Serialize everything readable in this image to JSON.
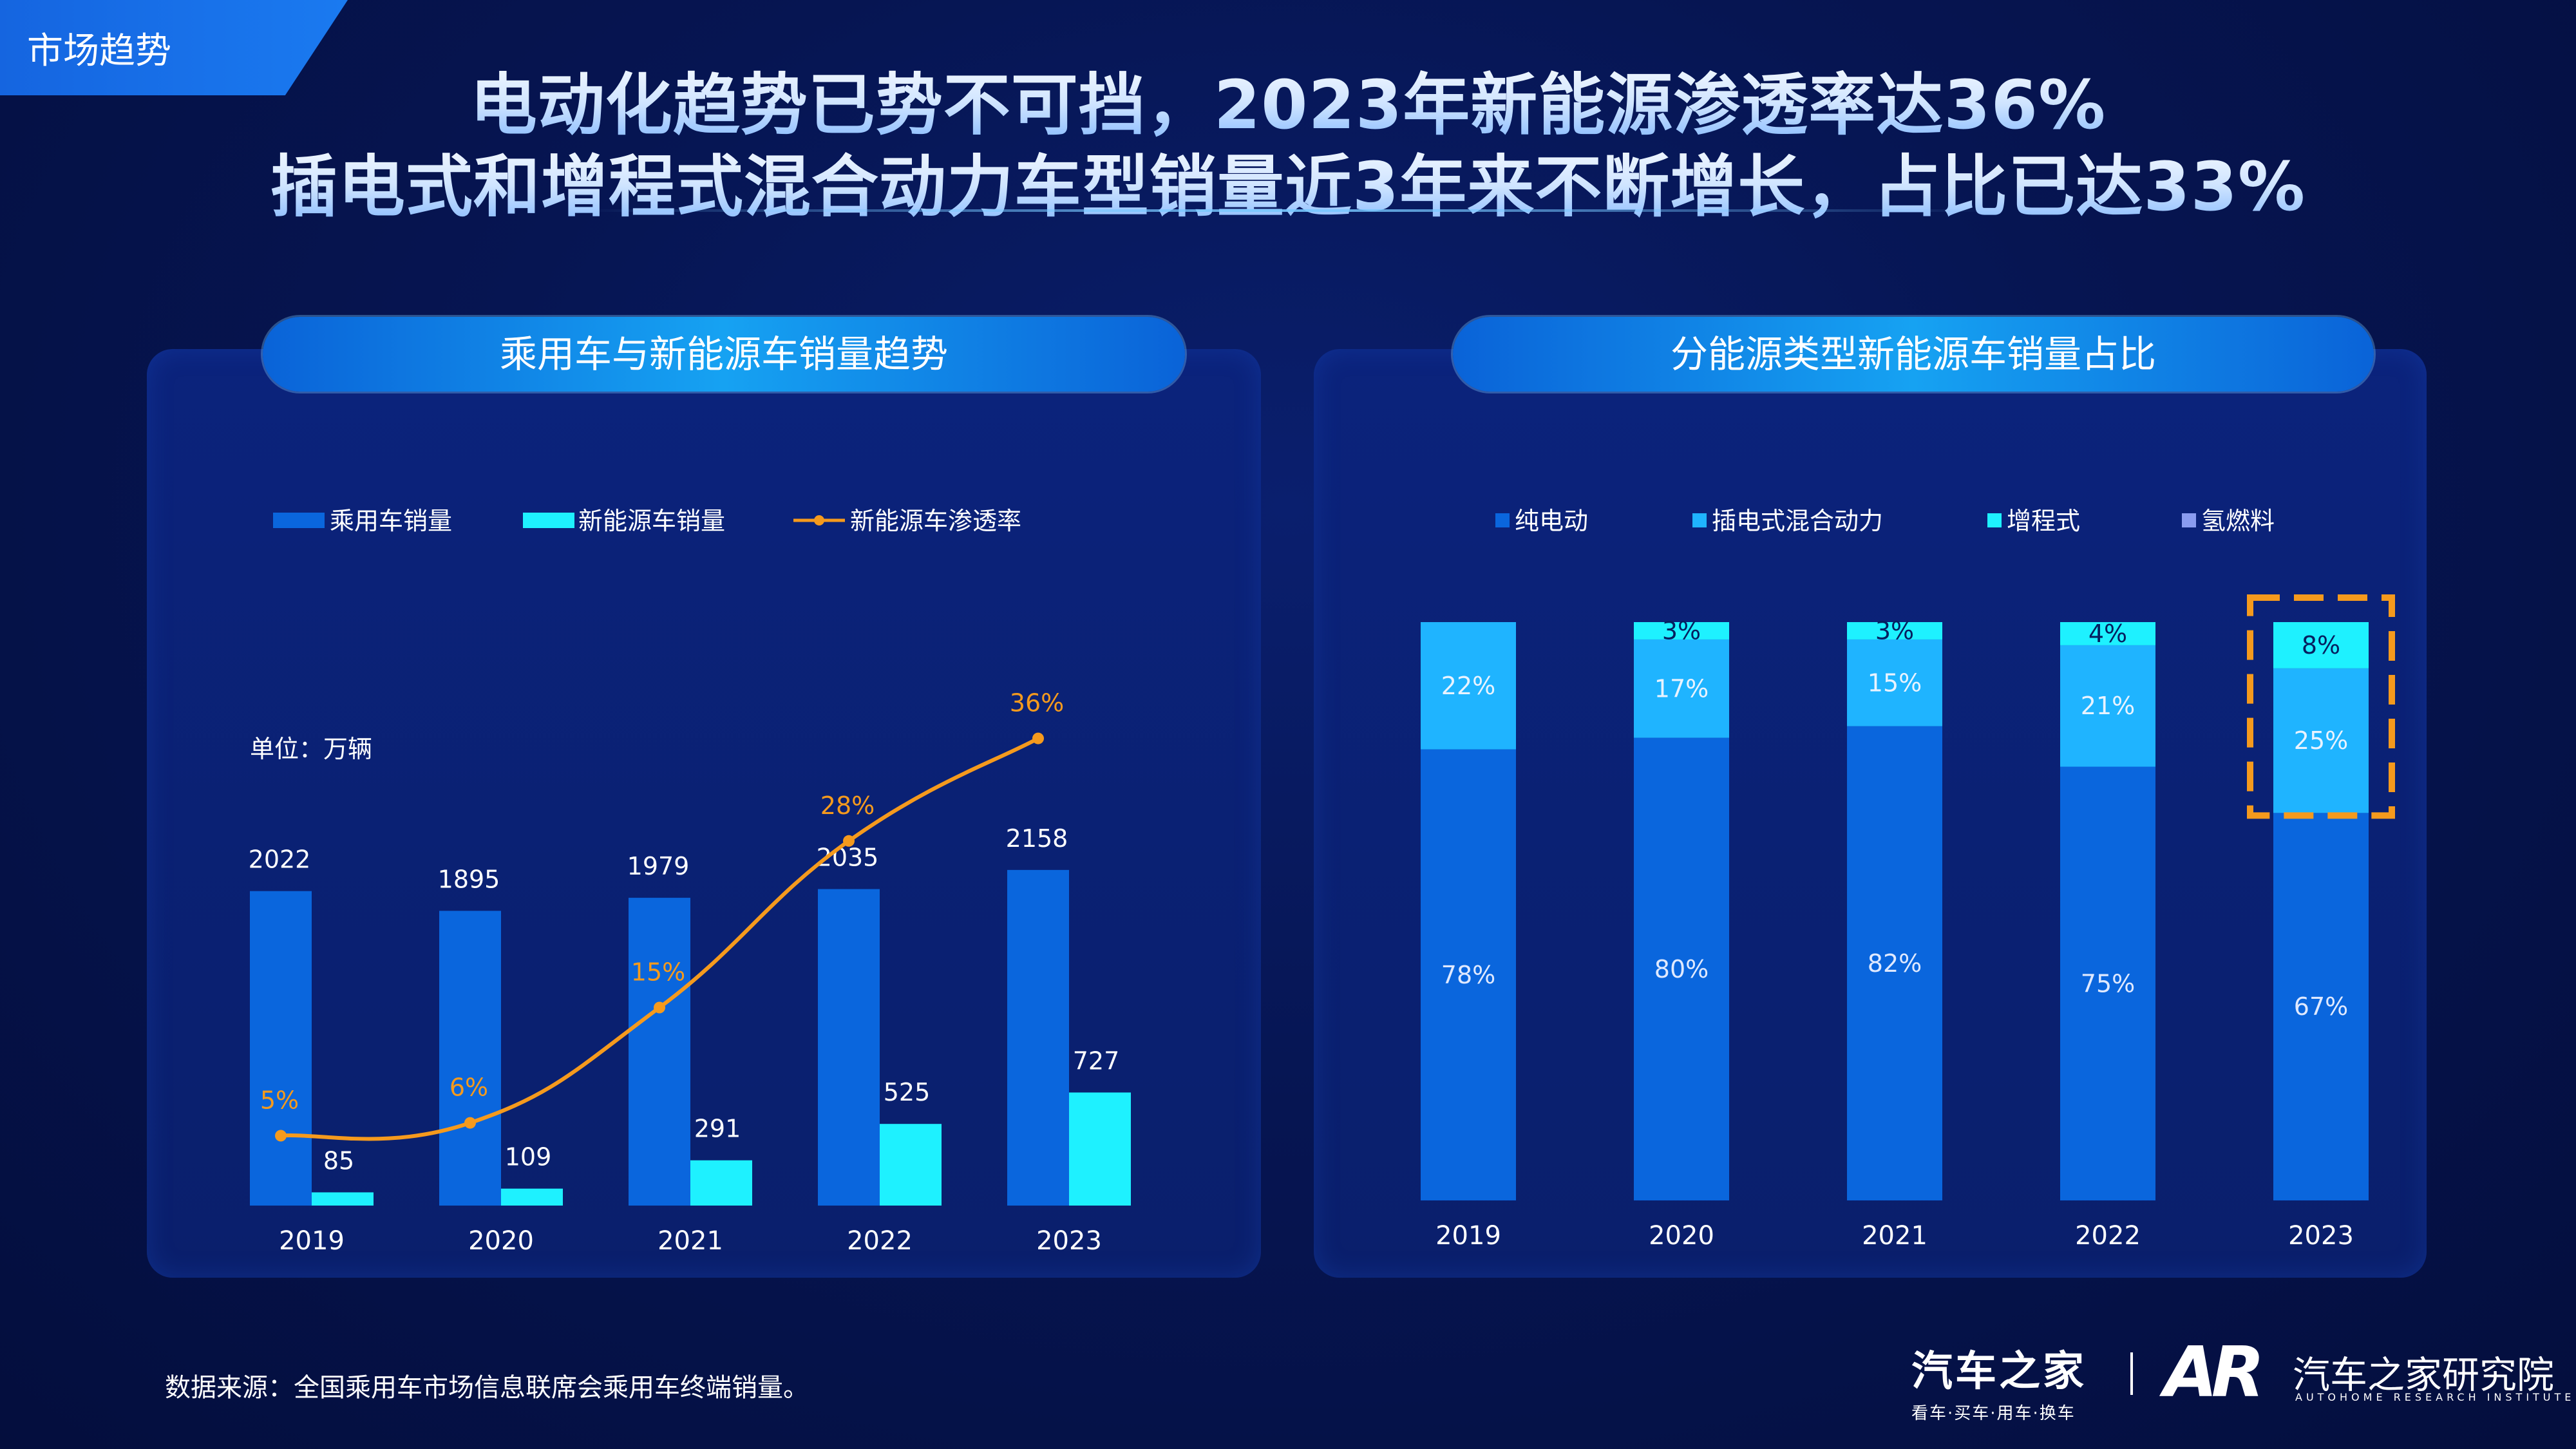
{
  "section_tag": "市场趋势",
  "headline": {
    "line1": "电动化趋势已势不可挡，2023年新能源渗透率达36%",
    "line2": "插电式和增程式混合动力车型销量近3年来不断增长，占比已达33%"
  },
  "colors": {
    "passenger": "#0a66dd",
    "nev": "#1ef1ff",
    "penetration": "#f59a1d",
    "bev": "#0a66dd",
    "phev": "#1fb4ff",
    "erev": "#1ef1ff",
    "fcev": "#8a9cf0",
    "highlight": "#f59a1d"
  },
  "chart_data": [
    {
      "type": "bar",
      "title": "乘用车与新能源车销量趋势",
      "unit_label": "单位：万辆",
      "categories": [
        "2019",
        "2020",
        "2021",
        "2022",
        "2023"
      ],
      "series": [
        {
          "name": "乘用车销量",
          "type": "bar",
          "values": [
            2022,
            1895,
            1979,
            2035,
            2158
          ],
          "labels": [
            "2022",
            "1895",
            "1979",
            "2035",
            "2158"
          ]
        },
        {
          "name": "新能源车销量",
          "type": "bar",
          "values": [
            85,
            109,
            291,
            525,
            727
          ],
          "labels": [
            "85",
            "109",
            "291",
            "525",
            "727"
          ]
        },
        {
          "name": "新能源车渗透率",
          "type": "line",
          "values": [
            5,
            6,
            15,
            28,
            36
          ],
          "labels": [
            "5%",
            "6%",
            "15%",
            "28%",
            "36%"
          ]
        }
      ],
      "legend": "top"
    },
    {
      "type": "bar",
      "stacked": true,
      "title": "分能源类型新能源车销量占比",
      "categories": [
        "2019",
        "2020",
        "2021",
        "2022",
        "2023"
      ],
      "series": [
        {
          "name": "纯电动",
          "values": [
            78,
            80,
            82,
            75,
            67
          ],
          "labels": [
            "78%",
            "80%",
            "82%",
            "75%",
            "67%"
          ]
        },
        {
          "name": "插电式混合动力",
          "values": [
            22,
            17,
            15,
            21,
            25
          ],
          "labels": [
            "22%",
            "17%",
            "15%",
            "21%",
            "25%"
          ]
        },
        {
          "name": "增程式",
          "values": [
            0,
            3,
            3,
            4,
            8
          ],
          "labels": [
            "",
            "3%",
            "3%",
            "4%",
            "8%"
          ]
        },
        {
          "name": "氢燃料",
          "values": [
            0,
            0,
            0,
            0,
            0
          ],
          "labels": [
            "",
            "",
            "",
            "",
            ""
          ]
        }
      ],
      "highlight_category": "2023",
      "legend": "top"
    }
  ],
  "footer": {
    "source": "数据来源：全国乘用车市场信息联席会乘用车终端销量。",
    "logo1_name": "汽车之家",
    "logo1_slogan": "看车·买车·用车·换车",
    "logo2_mark": "AR",
    "logo2_name": "汽车之家研究院",
    "logo2_en": "AUTOHOME RESEARCH INSTITUTE"
  }
}
